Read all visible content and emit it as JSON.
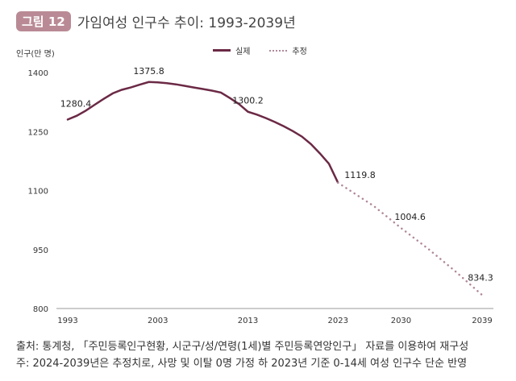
{
  "header": {
    "badge": "그림 12",
    "title": "가임여성 인구수 추이: 1993-2039년"
  },
  "footer": {
    "source": "출처: 통계청, 「주민등록인구현황, 시군구/성/연령(1세)별 주민등록연앙인구」 자료를 이용하여 재구성",
    "note": "주: 2024-2039년은 추정치로, 사망 및 이탈 0명 가정 하 2023년 기준 0-14세 여성 인구수 단순 반영"
  },
  "chart_data": {
    "type": "line",
    "title": "가임여성 인구수 추이: 1993-2039년",
    "ylabel": "인구(만 명)",
    "ylim": [
      800,
      1400
    ],
    "yticks": [
      800,
      950,
      1100,
      1250,
      1400
    ],
    "xlim": [
      1993,
      2039
    ],
    "xticks": [
      1993,
      2003,
      2013,
      2023,
      2030,
      2039
    ],
    "grid": false,
    "legend_placement": "top-center",
    "colors": {
      "actual": "#6b2945",
      "projected": "#b0889a",
      "badge": "#b98a95"
    },
    "series": [
      {
        "name": "실제",
        "style": "solid",
        "x": [
          1993,
          1994,
          1995,
          1996,
          1997,
          1998,
          1999,
          2000,
          2001,
          2002,
          2003,
          2004,
          2005,
          2006,
          2007,
          2008,
          2009,
          2010,
          2011,
          2012,
          2013,
          2014,
          2015,
          2016,
          2017,
          2018,
          2019,
          2020,
          2021,
          2022,
          2023
        ],
        "y": [
          1280.4,
          1290,
          1303,
          1318,
          1333,
          1347,
          1356,
          1362,
          1369,
          1375.8,
          1375,
          1373,
          1370,
          1366,
          1362,
          1358,
          1354,
          1349,
          1335,
          1320,
          1300.2,
          1293,
          1284,
          1274,
          1263,
          1251,
          1237,
          1218,
          1194,
          1168,
          1119.8
        ]
      },
      {
        "name": "추정",
        "style": "dotted",
        "x": [
          2023,
          2025,
          2027,
          2030,
          2033,
          2036,
          2039
        ],
        "y": [
          1119.8,
          1090,
          1060,
          1004.6,
          952,
          895,
          834.3
        ]
      }
    ],
    "data_labels": [
      {
        "x": 1993,
        "text": "1280.4"
      },
      {
        "x": 2002,
        "text": "1375.8"
      },
      {
        "x": 2013,
        "text": "1300.2"
      },
      {
        "x": 2023,
        "text": "1119.8"
      },
      {
        "x": 2030,
        "text": "1004.6"
      },
      {
        "x": 2039,
        "text": "834.3"
      }
    ]
  }
}
